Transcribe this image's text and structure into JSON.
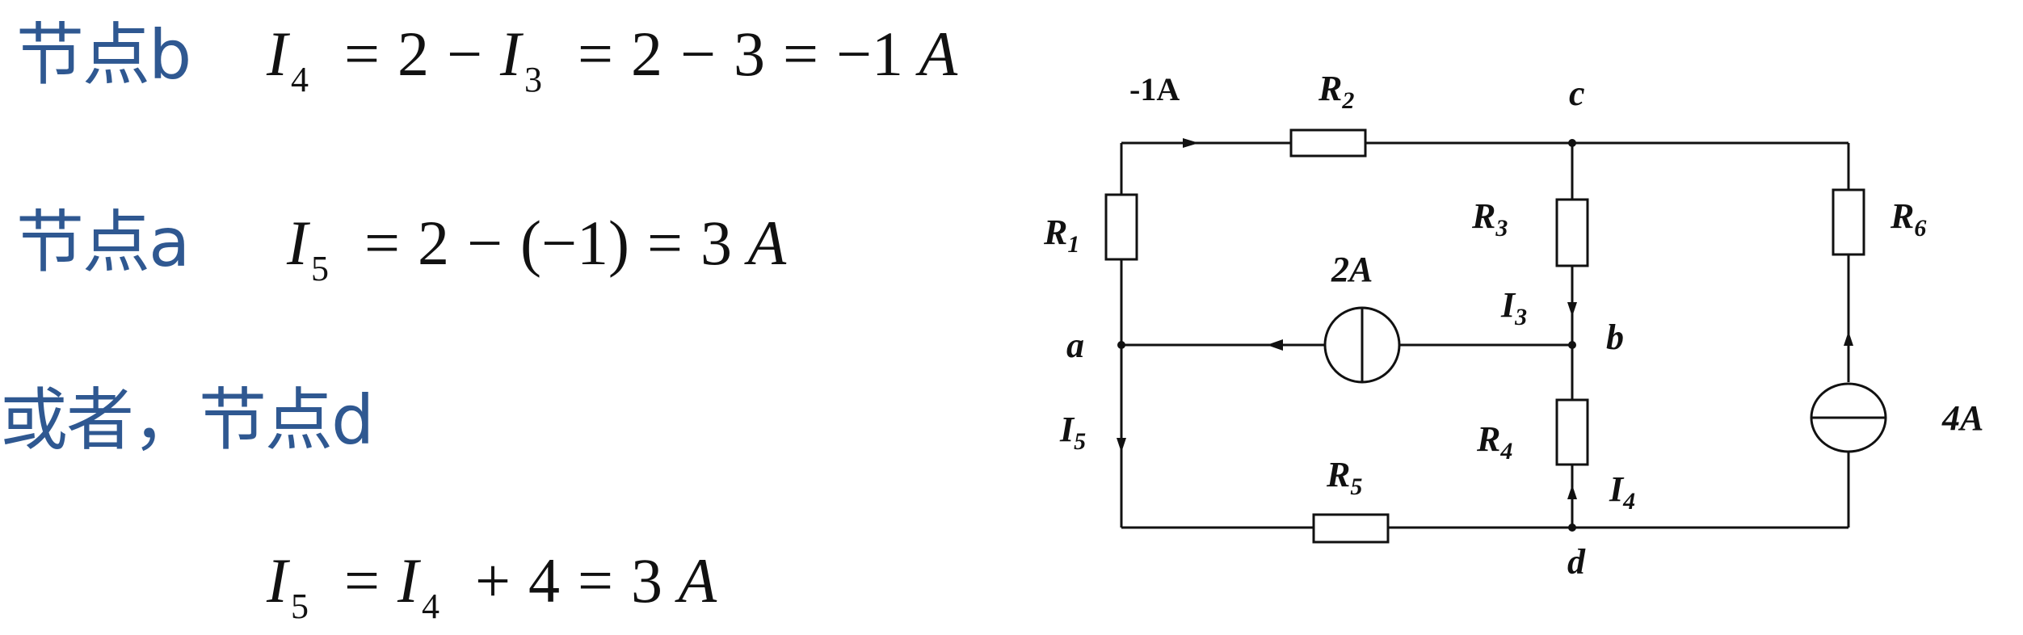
{
  "lines": {
    "node_b_label": "节点b",
    "node_a_label": "节点a",
    "or_label": "或者，节点d",
    "eq1": {
      "lhs_var": "I",
      "lhs_sub": "4",
      "t1": "2",
      "op1": "−",
      "var2": "I",
      "sub2": "3",
      "t2": "2",
      "op2": "−",
      "t3": "3",
      "result": "−1",
      "unit": "A"
    },
    "eq2": {
      "lhs_var": "I",
      "lhs_sub": "5",
      "t1": "2",
      "op1": "−",
      "paren": "(−1)",
      "result": "3",
      "unit": "A"
    },
    "eq3": {
      "lhs_var": "I",
      "lhs_sub": "5",
      "var2": "I",
      "sub2": "4",
      "op1": "+",
      "t1": "4",
      "result": "3",
      "unit": "A"
    },
    "equals": "="
  },
  "circuit": {
    "top_current": "-1A",
    "R1": {
      "main": "R",
      "sub": "1"
    },
    "R2": {
      "main": "R",
      "sub": "2"
    },
    "R3": {
      "main": "R",
      "sub": "3"
    },
    "R4": {
      "main": "R",
      "sub": "4"
    },
    "R5": {
      "main": "R",
      "sub": "5"
    },
    "R6": {
      "main": "R",
      "sub": "6"
    },
    "I3": {
      "main": "I",
      "sub": "3"
    },
    "I4": {
      "main": "I",
      "sub": "4"
    },
    "I5": {
      "main": "I",
      "sub": "5"
    },
    "source_2A": "2A",
    "source_4A": "4A",
    "node_a": "a",
    "node_b": "b",
    "node_c": "c",
    "node_d": "d"
  }
}
